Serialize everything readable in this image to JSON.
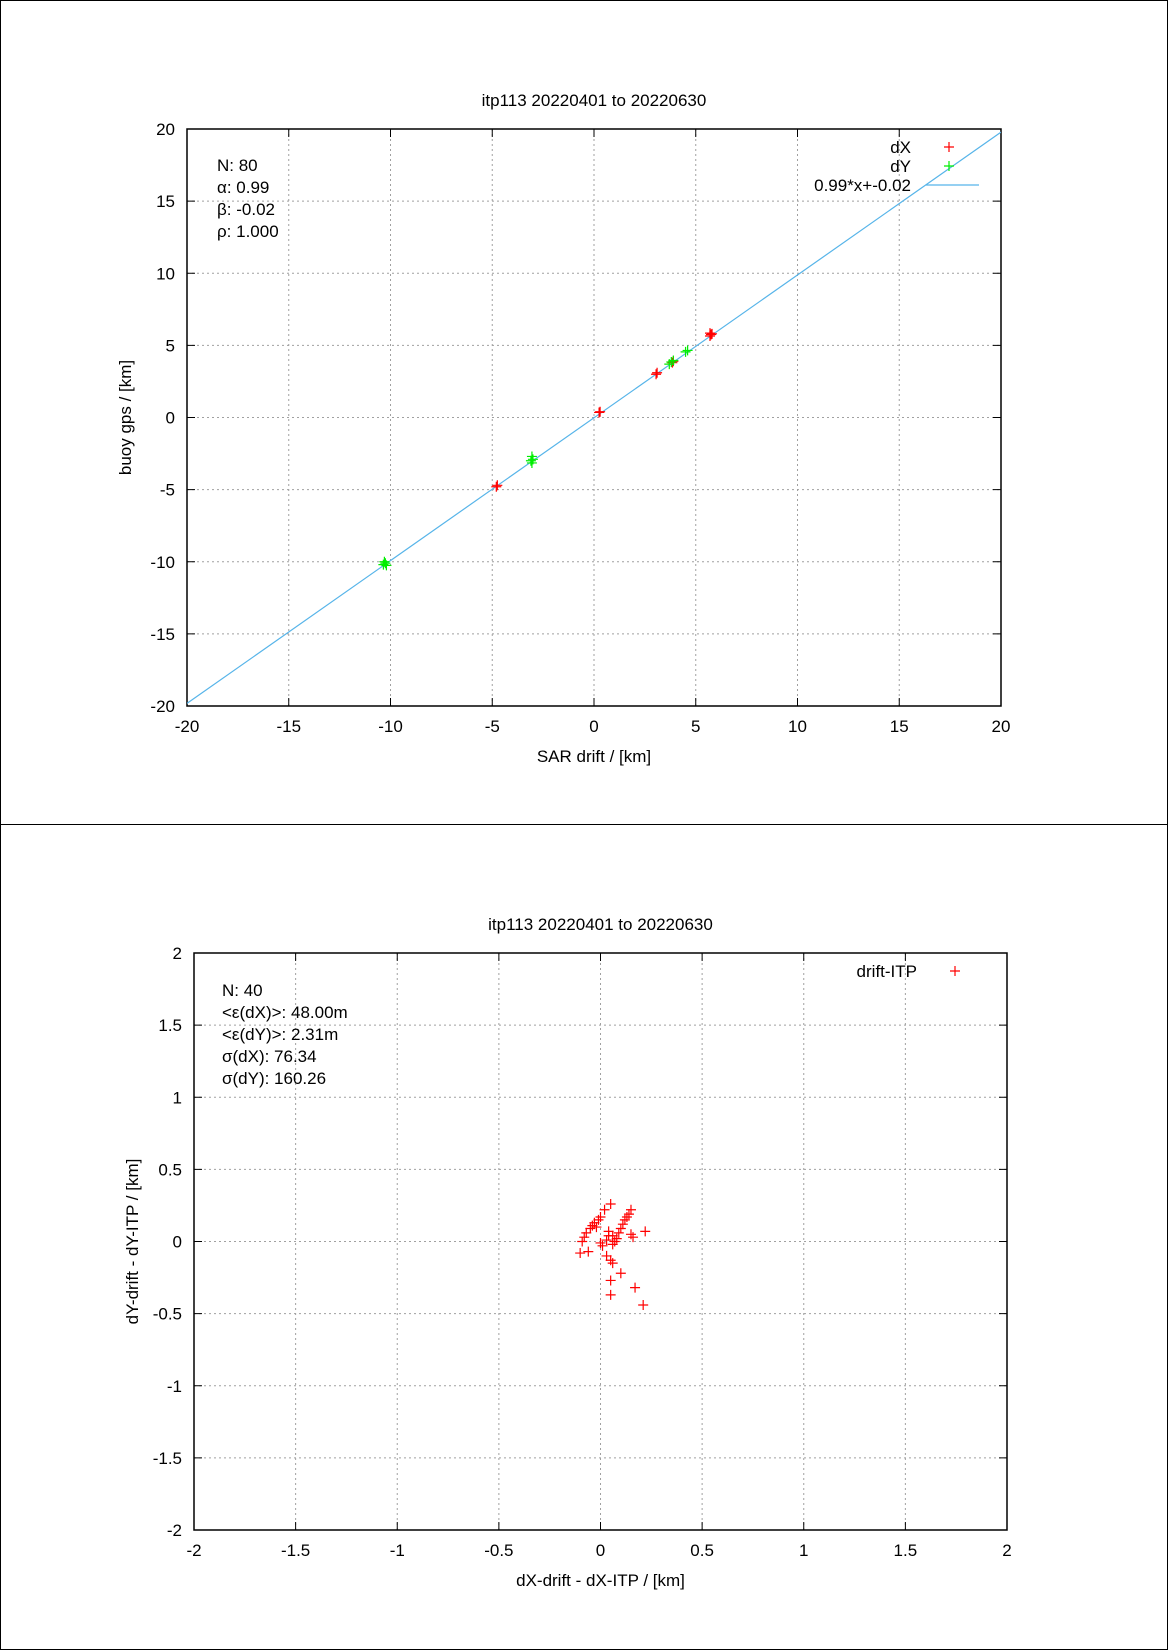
{
  "chart_data": [
    {
      "type": "scatter",
      "title": "itp113 20220401 to 20220630",
      "xlabel": "SAR drift / [km]",
      "ylabel": "buoy gps / [km]",
      "xlim": [
        -20,
        20
      ],
      "ylim": [
        -20,
        20
      ],
      "xticks": [
        -20,
        -15,
        -10,
        -5,
        0,
        5,
        10,
        15,
        20
      ],
      "yticks": [
        -20,
        -15,
        -10,
        -5,
        0,
        5,
        10,
        15,
        20
      ],
      "grid": true,
      "legend_position": "top-right",
      "stats": [
        "N: 80",
        "α: 0.99",
        "β: -0.02",
        "ρ: 1.000"
      ],
      "series": [
        {
          "name": "dX",
          "color": "#ff0000",
          "marker": "plus",
          "x": [
            -4.8,
            -4.75,
            0.25,
            0.3,
            3.05,
            3.1,
            3.85,
            3.9,
            5.7,
            5.75,
            5.8,
            5.7
          ],
          "y": [
            -4.8,
            -4.7,
            0.35,
            0.4,
            3.0,
            3.1,
            3.8,
            3.9,
            5.65,
            5.75,
            5.8,
            5.85
          ]
        },
        {
          "name": "dY",
          "color": "#00ee00",
          "marker": "plus",
          "x": [
            -10.3,
            -10.25,
            -10.2,
            -10.35,
            -3.05,
            -3.0,
            -3.1,
            -3.05,
            3.7,
            3.8,
            3.9,
            4.5,
            4.6
          ],
          "y": [
            -10.0,
            -10.1,
            -10.25,
            -10.2,
            -2.7,
            -2.9,
            -3.0,
            -3.15,
            3.7,
            3.85,
            3.95,
            4.55,
            4.65
          ]
        },
        {
          "name": "0.99*x+-0.02",
          "color": "#56b4e9",
          "type": "line",
          "slope": 0.99,
          "intercept": -0.02
        }
      ]
    },
    {
      "type": "scatter",
      "title": "itp113 20220401 to 20220630",
      "xlabel": "dX-drift - dX-ITP / [km]",
      "ylabel": "dY-drift - dY-ITP / [km]",
      "xlim": [
        -2,
        2
      ],
      "ylim": [
        -2,
        2
      ],
      "xticks": [
        -2,
        -1.5,
        -1,
        -0.5,
        0,
        0.5,
        1,
        1.5,
        2
      ],
      "yticks": [
        -2,
        -1.5,
        -1,
        -0.5,
        0,
        0.5,
        1,
        1.5,
        2
      ],
      "grid": true,
      "legend_position": "top-right",
      "stats": [
        "N: 40",
        "<ε(dX)>:  48.00m",
        "<ε(dY)>: 2.31m",
        "σ(dX):  76.34",
        "σ(dY):  160.26"
      ],
      "series": [
        {
          "name": "drift-ITP",
          "color": "#ff0000",
          "marker": "plus",
          "x": [
            -0.1,
            -0.09,
            -0.08,
            -0.07,
            -0.06,
            -0.05,
            -0.04,
            -0.03,
            -0.02,
            -0.01,
            0.0,
            0.01,
            0.02,
            0.03,
            0.03,
            0.04,
            0.04,
            0.05,
            0.05,
            0.06,
            0.07,
            0.08,
            0.09,
            0.1,
            0.11,
            0.12,
            0.13,
            0.14,
            0.15,
            0.16,
            0.17,
            0.22,
            0.05,
            0.05,
            0.06,
            0.1,
            0.15,
            0.21,
            0.0,
            0.06
          ],
          "y": [
            -0.08,
            0.0,
            0.03,
            0.06,
            -0.07,
            0.09,
            0.11,
            0.13,
            0.1,
            0.15,
            0.17,
            -0.03,
            0.22,
            0.01,
            -0.1,
            0.04,
            0.07,
            -0.13,
            0.26,
            -0.02,
            0.0,
            0.02,
            0.06,
            0.09,
            0.12,
            0.15,
            0.17,
            0.19,
            0.22,
            0.03,
            -0.32,
            0.07,
            -0.27,
            -0.37,
            -0.15,
            -0.22,
            0.05,
            -0.44,
            -0.01,
            0.04
          ]
        }
      ]
    }
  ]
}
